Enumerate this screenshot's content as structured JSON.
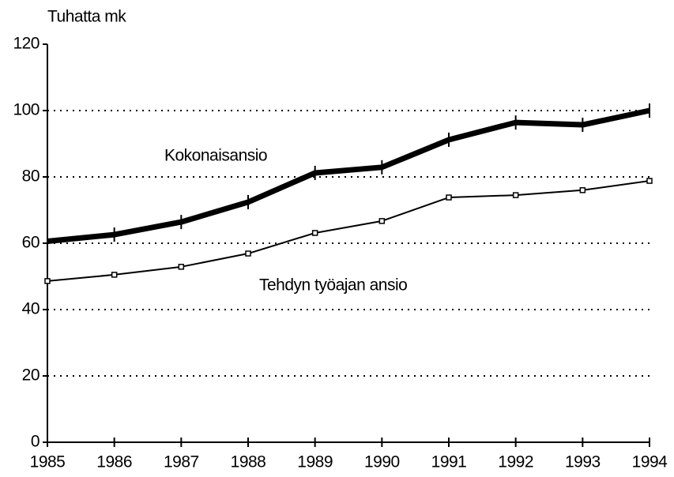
{
  "chart_data": {
    "type": "line",
    "y_label": "Tuhatta mk",
    "x": [
      1985,
      1986,
      1987,
      1988,
      1989,
      1990,
      1991,
      1992,
      1993,
      1994
    ],
    "xlim": [
      1985,
      1994
    ],
    "xticks": [
      1985,
      1986,
      1987,
      1988,
      1989,
      1990,
      1991,
      1992,
      1993,
      1994
    ],
    "ylim": [
      0,
      120
    ],
    "yticks": [
      0,
      20,
      40,
      60,
      80,
      100,
      120
    ],
    "grid": true,
    "series": [
      {
        "name": "Kokonaisansio",
        "color": "#000000",
        "values": [
          60.6,
          62.6,
          66.4,
          72.4,
          81.2,
          82.9,
          91.2,
          96.4,
          95.7,
          100
        ]
      },
      {
        "name": "Tehdyn työajan ansio",
        "color": "#000000",
        "values": [
          48.6,
          50.5,
          52.9,
          56.9,
          63.1,
          66.7,
          73.8,
          74.5,
          76,
          78.8
        ]
      }
    ]
  }
}
